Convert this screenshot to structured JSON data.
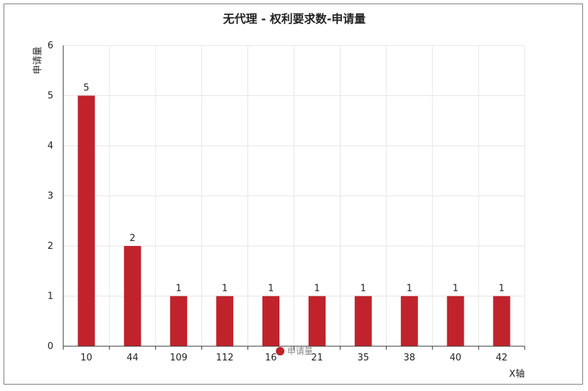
{
  "chart_data": {
    "type": "bar",
    "title": "无代理 - 权利要求数-申请量",
    "xlabel": "X轴",
    "ylabel": "申请量",
    "categories": [
      "10",
      "44",
      "109",
      "112",
      "16",
      "21",
      "35",
      "38",
      "40",
      "42"
    ],
    "series": [
      {
        "name": "申请量",
        "values": [
          5,
          2,
          1,
          1,
          1,
          1,
          1,
          1,
          1,
          1
        ]
      }
    ],
    "ylim": [
      0,
      6
    ],
    "yticks": [
      0,
      1,
      2,
      3,
      4,
      5,
      6
    ],
    "grid": true,
    "legend_position": "bottom-center",
    "colors": {
      "bar": "#c0232c",
      "grid": "#e6e6e6",
      "axis": "#333333"
    }
  }
}
